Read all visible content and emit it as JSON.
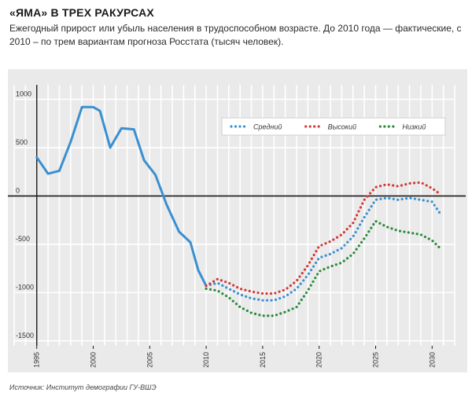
{
  "header": {
    "title": "«ЯМА» В ТРЕХ РАКУРСАХ",
    "subtitle": "Ежегодный прирост или убыль населения в трудоспособном возрасте. До 2010 года — фактические, с 2010 – по трем вариантам прогноза Росстата (тысяч человек)."
  },
  "footer": {
    "source": "Источник: Институт демографии ГУ-ВШЭ"
  },
  "chart_data": {
    "type": "line",
    "title": "«ЯМА» В ТРЕХ РАКУРСАХ",
    "xlabel": "",
    "ylabel": "",
    "xlim": [
      1993,
      2032
    ],
    "ylim": [
      -1550,
      1150
    ],
    "x_ticks": [
      "1995",
      "2000",
      "2005",
      "2010",
      "2015",
      "2020",
      "2025",
      "2030"
    ],
    "y_ticks": [
      {
        "value": 1000,
        "label": "1000"
      },
      {
        "value": 500,
        "label": "500"
      },
      {
        "value": 0,
        "label": "0"
      },
      {
        "value": -500,
        "label": "-500"
      },
      {
        "value": -1000,
        "label": "-1000"
      },
      {
        "value": -1500,
        "label": "-1500"
      }
    ],
    "grid": true,
    "legend_position": "top-right",
    "series": [
      {
        "key": "actual",
        "color": "#3a8fd0",
        "style": "solid",
        "x": [
          1995,
          1996,
          1997,
          1998,
          1999,
          2000,
          2000.6,
          2001.5,
          2002.5,
          2003.6,
          2004.5,
          2005.5,
          2006.5,
          2007.6,
          2008.6,
          2009.3,
          2010
        ],
        "y": [
          400,
          230,
          260,
          560,
          920,
          920,
          880,
          500,
          700,
          690,
          370,
          220,
          -90,
          -370,
          -480,
          -770,
          -930
        ]
      },
      {
        "key": "medium",
        "name": "Средний",
        "color": "#3a8fd0",
        "style": "dotted",
        "x": [
          2010,
          2011,
          2012,
          2013,
          2014,
          2015,
          2016,
          2017,
          2018,
          2019,
          2020,
          2021,
          2022,
          2023,
          2024,
          2025,
          2026,
          2027,
          2028,
          2029,
          2030,
          2030.7
        ],
        "y": [
          -930,
          -900,
          -960,
          -1020,
          -1060,
          -1080,
          -1080,
          -1040,
          -960,
          -820,
          -640,
          -600,
          -540,
          -420,
          -220,
          -40,
          -20,
          -40,
          -20,
          -40,
          -60,
          -180
        ]
      },
      {
        "key": "high",
        "name": "Высокий",
        "color": "#d23a3a",
        "style": "dotted",
        "x": [
          2010,
          2011,
          2012,
          2013,
          2014,
          2015,
          2016,
          2017,
          2018,
          2019,
          2020,
          2021,
          2022,
          2023,
          2024,
          2025,
          2026,
          2027,
          2028,
          2029,
          2030,
          2030.7
        ],
        "y": [
          -930,
          -860,
          -900,
          -960,
          -990,
          -1010,
          -1010,
          -970,
          -880,
          -720,
          -520,
          -470,
          -400,
          -280,
          -40,
          90,
          120,
          100,
          130,
          140,
          80,
          20
        ]
      },
      {
        "key": "low",
        "name": "Низкий",
        "color": "#2a8a3a",
        "style": "dotted",
        "x": [
          2010,
          2011,
          2012,
          2013,
          2014,
          2015,
          2016,
          2017,
          2018,
          2019,
          2020,
          2021,
          2022,
          2023,
          2024,
          2025,
          2026,
          2027,
          2028,
          2029,
          2030,
          2030.7
        ],
        "y": [
          -960,
          -980,
          -1050,
          -1150,
          -1210,
          -1240,
          -1240,
          -1200,
          -1150,
          -980,
          -780,
          -730,
          -690,
          -600,
          -440,
          -260,
          -320,
          -360,
          -380,
          -400,
          -460,
          -540
        ]
      }
    ]
  }
}
